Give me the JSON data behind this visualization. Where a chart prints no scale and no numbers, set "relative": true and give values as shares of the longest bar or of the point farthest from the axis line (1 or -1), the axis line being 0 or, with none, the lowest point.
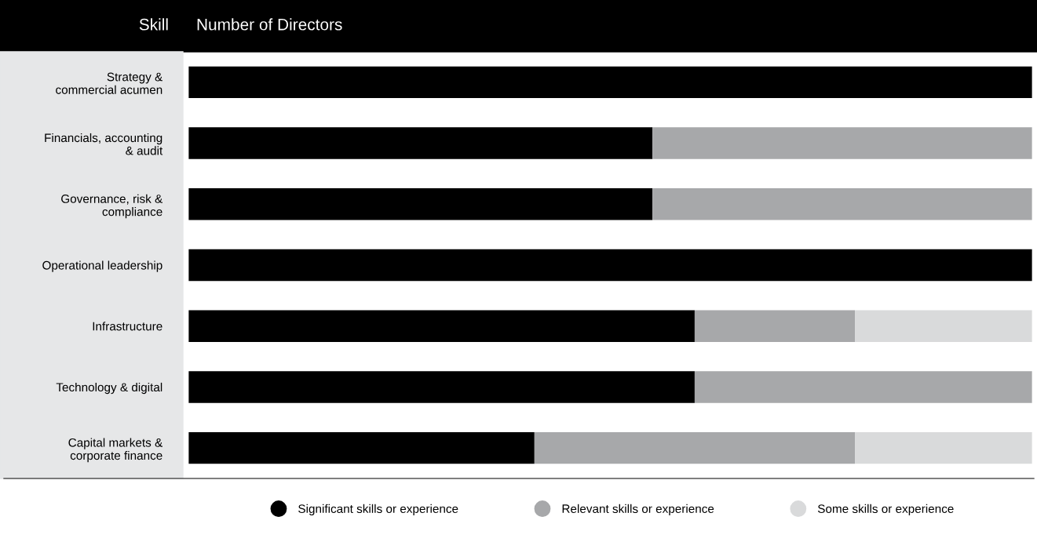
{
  "chart_data": {
    "type": "bar",
    "orientation": "horizontal",
    "stacked": true,
    "relative": true,
    "ylabel": "Skill",
    "xlabel": "Number of Directors",
    "categories": [
      "Strategy &\ncommercial acumen",
      "Financials, accounting\n& audit",
      "Governance, risk &\ncompliance",
      "Operational leadership",
      "Infrastructure",
      "Technology & digital",
      "Capital markets &\ncorporate finance"
    ],
    "series": [
      {
        "name": "Significant skills or experience",
        "color": "#000000",
        "values": [
          1,
          0.55,
          0.55,
          1,
          0.6,
          0.6,
          0.41
        ]
      },
      {
        "name": "Relevant skills or experience",
        "color": "#a7a8aa",
        "values": [
          0,
          0.45,
          0.45,
          0,
          0.19,
          0.4,
          0.38
        ]
      },
      {
        "name": "Some skills or experience",
        "color": "#d9dadb",
        "values": [
          0,
          0,
          0,
          0,
          0.21,
          0,
          0.21
        ]
      }
    ],
    "legend": "bottom",
    "grid": false
  }
}
